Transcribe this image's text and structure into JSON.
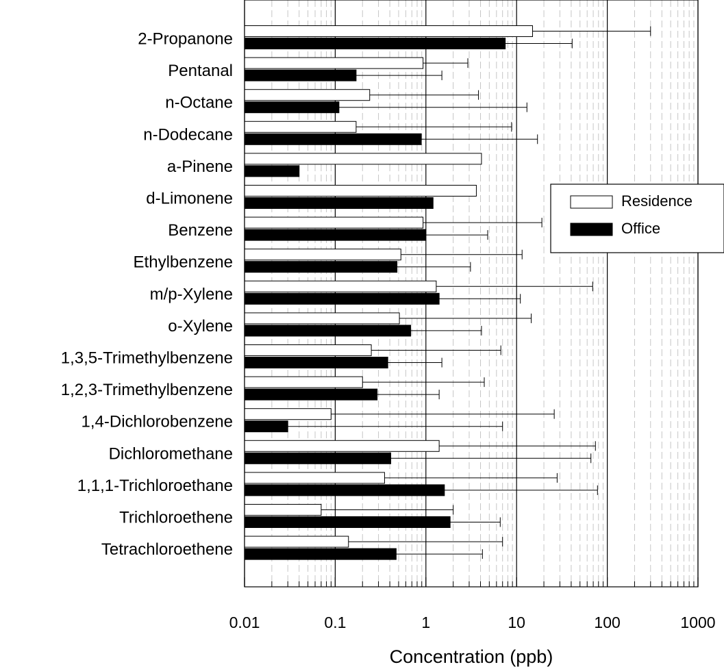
{
  "chart_data": {
    "type": "bar",
    "orientation": "horizontal",
    "xscale": "log",
    "xlim": [
      0.01,
      1000
    ],
    "xticks": [
      "0.01",
      "0.1",
      "1",
      "10",
      "100",
      "1000"
    ],
    "xticks_values": [
      0.01,
      0.1,
      1,
      10,
      100,
      1000
    ],
    "xlabel": "Concentration (ppb)",
    "ylabel": "",
    "title": "",
    "grid": "vertical major solid, minor dashed",
    "legend_position": "right",
    "categories": [
      "2-Propanone",
      "Pentanal",
      "n-Octane",
      "n-Dodecane",
      "a-Pinene",
      "d-Limonene",
      "Benzene",
      "Ethylbenzene",
      "m/p-Xylene",
      "o-Xylene",
      "1,3,5-Trimethylbenzene",
      "1,2,3-Trimethylbenzene",
      "1,4-Dichlorobenzene",
      "Dichloromethane",
      "1,1,1-Trichloroethane",
      "Trichloroethene",
      "Tetrachloroethene"
    ],
    "series": [
      {
        "name": "Residence",
        "fill": "#ffffff",
        "values": [
          15,
          0.93,
          0.24,
          0.17,
          4.1,
          3.6,
          0.93,
          0.53,
          1.3,
          0.51,
          0.25,
          0.2,
          0.09,
          1.4,
          0.35,
          0.07,
          0.14
        ],
        "error_upper": [
          300,
          2.9,
          3.8,
          8.8,
          null,
          null,
          19,
          11.5,
          69,
          14.5,
          6.7,
          4.4,
          26,
          74,
          28,
          2.0,
          7.0
        ]
      },
      {
        "name": "Office",
        "fill": "#000000",
        "values": [
          7.5,
          0.17,
          0.11,
          0.89,
          0.04,
          1.2,
          1.0,
          0.48,
          1.4,
          0.68,
          0.38,
          0.29,
          0.03,
          0.41,
          1.6,
          1.85,
          0.47
        ],
        "error_upper": [
          41,
          1.5,
          13,
          17,
          null,
          null,
          4.8,
          3.1,
          11,
          4.1,
          1.5,
          1.4,
          7,
          66,
          78,
          6.6,
          4.2
        ]
      }
    ],
    "legend": [
      {
        "label": "Residence",
        "fill": "#ffffff"
      },
      {
        "label": "Office",
        "fill": "#000000"
      }
    ]
  }
}
